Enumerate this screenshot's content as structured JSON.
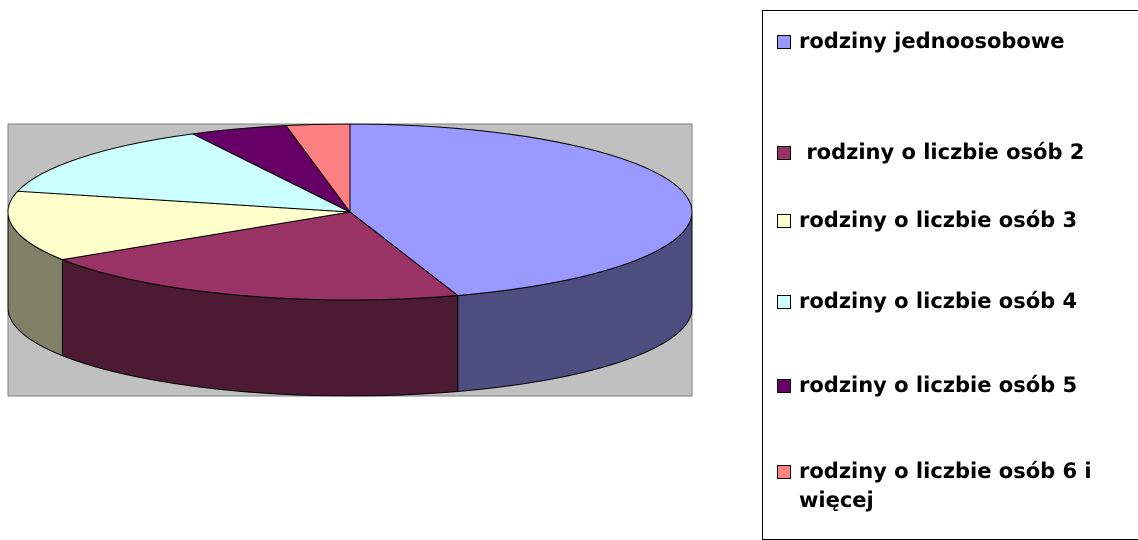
{
  "chart_data": {
    "type": "pie",
    "three_d": true,
    "title": "",
    "legend_position": "right",
    "plot_area_color": "#c0c0c0",
    "slices": [
      {
        "label": "rodziny jednoosobowe",
        "value": 44.9,
        "color": "#9999ff",
        "side_color": "#4d4d80"
      },
      {
        "label": " rodziny o liczbie osób 2",
        "value": 21.0,
        "color": "#993366",
        "side_color": "#4d1a33"
      },
      {
        "label": "rodziny o liczbie osób 3",
        "value": 12.9,
        "color": "#ffffcc",
        "side_color": "#808066"
      },
      {
        "label": "rodziny o liczbie osób 4",
        "value": 13.6,
        "color": "#ccffff",
        "side_color": "#668080"
      },
      {
        "label": "rodziny o liczbie osób 5",
        "value": 4.6,
        "color": "#660066",
        "side_color": "#330033"
      },
      {
        "label": "rodziny o liczbie osób 6 i\nwięcej",
        "value": 3.0,
        "color": "#ff8080",
        "side_color": "#804040"
      }
    ]
  }
}
